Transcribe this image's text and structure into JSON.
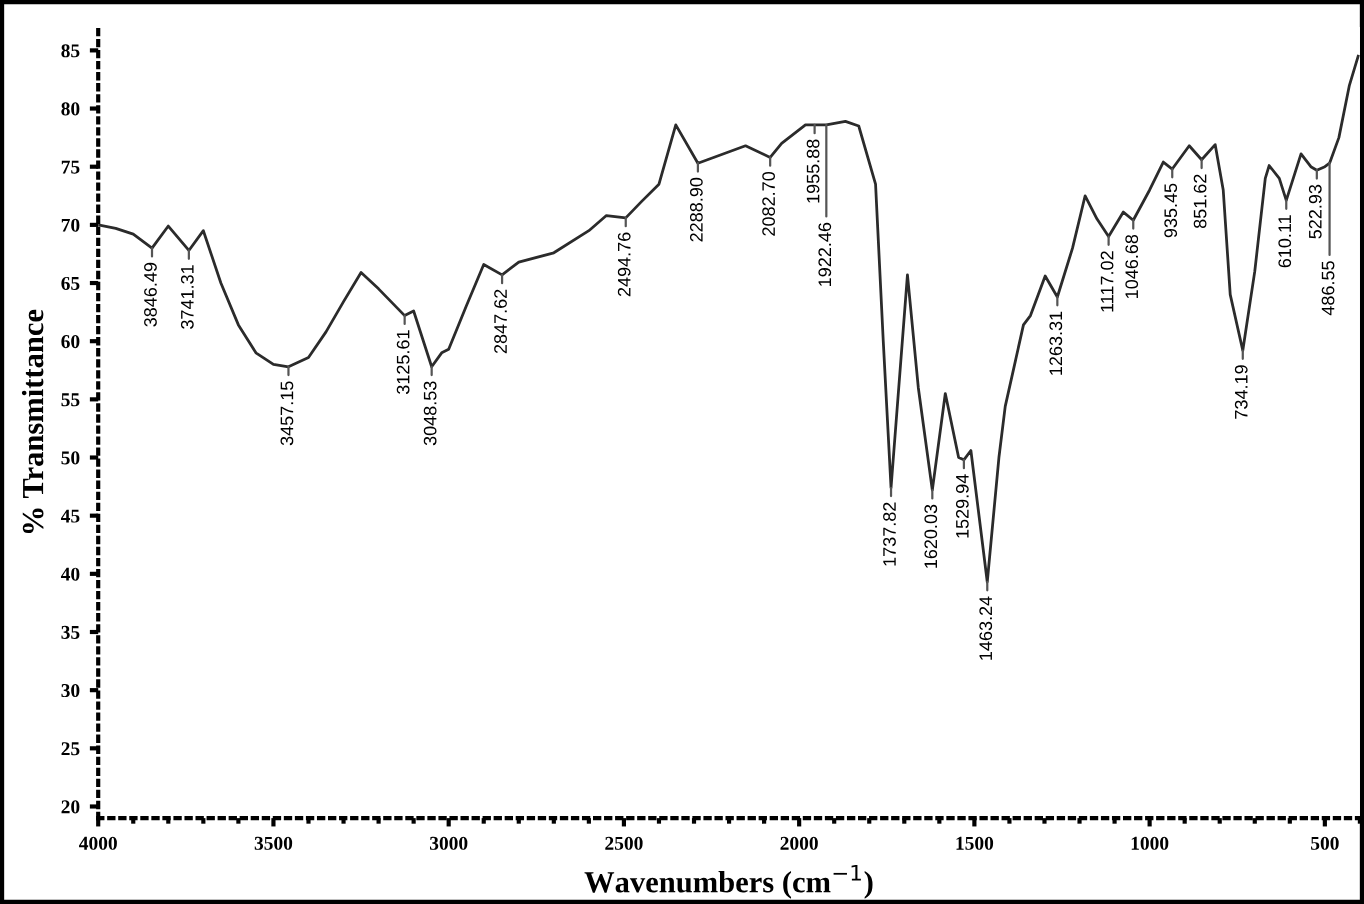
{
  "chart_data": {
    "type": "line",
    "xlabel": "Wavenumbers (cm$^{−1}$)",
    "ylabel": "% Transmittance",
    "xlim": [
      4000,
      400
    ],
    "ylim": [
      19,
      87
    ],
    "xticks": [
      4000,
      3500,
      3000,
      2500,
      2000,
      1500,
      1000,
      500
    ],
    "yticks": [
      20,
      25,
      30,
      35,
      40,
      45,
      50,
      55,
      60,
      65,
      70,
      75,
      80,
      85
    ],
    "line_style": "solid",
    "marker": "none",
    "series": [
      {
        "color": "#2b2b2b",
        "x": [
          4000,
          3950,
          3900,
          3846.49,
          3800,
          3741.31,
          3700,
          3650,
          3600,
          3550,
          3500,
          3457.15,
          3400,
          3350,
          3300,
          3250,
          3200,
          3125.61,
          3100,
          3048.53,
          3020,
          3000,
          2950,
          2900,
          2847.62,
          2800,
          2700,
          2600,
          2550,
          2494.76,
          2450,
          2400,
          2352,
          2288.9,
          2153,
          2082.7,
          2050,
          1982,
          1955.88,
          1922.46,
          1868,
          1830,
          1782,
          1760,
          1737.82,
          1691,
          1660,
          1620.03,
          1583,
          1545,
          1529.94,
          1510,
          1463.24,
          1430,
          1412,
          1360,
          1340,
          1298,
          1263.31,
          1220,
          1184,
          1150,
          1117.02,
          1075,
          1046.68,
          1000,
          961,
          935.45,
          887,
          851.62,
          813,
          790,
          770,
          734.19,
          700,
          670,
          659,
          630,
          610.11,
          568,
          540,
          522.93,
          500,
          486.55,
          460,
          430,
          405
        ],
        "values": [
          70.0,
          69.7,
          69.2,
          68.0,
          69.9,
          67.8,
          69.5,
          65.0,
          61.4,
          59.0,
          58.0,
          57.8,
          58.6,
          60.8,
          63.4,
          65.9,
          64.5,
          62.2,
          62.6,
          57.8,
          59.0,
          59.3,
          63.0,
          66.6,
          65.7,
          66.8,
          67.6,
          69.5,
          70.8,
          70.6,
          72.0,
          73.5,
          78.6,
          75.3,
          76.8,
          75.8,
          77.0,
          78.6,
          78.6,
          78.6,
          78.9,
          78.5,
          73.5,
          60.0,
          47.4,
          65.7,
          56.0,
          47.2,
          55.5,
          50.0,
          49.8,
          50.6,
          39.3,
          50.0,
          54.4,
          61.4,
          62.2,
          65.6,
          63.8,
          68.0,
          72.5,
          70.5,
          69.0,
          71.1,
          70.4,
          73.0,
          75.4,
          74.8,
          76.8,
          75.6,
          76.9,
          73.0,
          64.0,
          59.2,
          66.0,
          74.0,
          75.1,
          74.0,
          72.1,
          76.1,
          75.0,
          74.7,
          75.0,
          75.3,
          77.5,
          82.0,
          84.5
        ]
      }
    ],
    "annotations": [
      {
        "text": "3846.49",
        "x": 3846.49,
        "y": 68.0
      },
      {
        "text": "3741.31",
        "x": 3741.31,
        "y": 67.8
      },
      {
        "text": "3457.15",
        "x": 3457.15,
        "y": 57.8
      },
      {
        "text": "3125.61",
        "x": 3125.61,
        "y": 62.2
      },
      {
        "text": "3048.53",
        "x": 3048.53,
        "y": 57.8
      },
      {
        "text": "2847.62",
        "x": 2847.62,
        "y": 65.7
      },
      {
        "text": "2494.76",
        "x": 2494.76,
        "y": 70.6
      },
      {
        "text": "2288.90",
        "x": 2288.9,
        "y": 75.3
      },
      {
        "text": "2082.70",
        "x": 2082.7,
        "y": 75.8
      },
      {
        "text": "1955.88",
        "x": 1955.88,
        "y": 78.6
      },
      {
        "text": "1922.46",
        "x": 1922.46,
        "y": 78.6
      },
      {
        "text": "1737.82",
        "x": 1737.82,
        "y": 47.4
      },
      {
        "text": "1620.03",
        "x": 1620.03,
        "y": 47.2
      },
      {
        "text": "1529.94",
        "x": 1529.94,
        "y": 49.8
      },
      {
        "text": "1463.24",
        "x": 1463.24,
        "y": 39.3
      },
      {
        "text": "1263.31",
        "x": 1263.31,
        "y": 63.8
      },
      {
        "text": "1117.02",
        "x": 1117.02,
        "y": 69.0
      },
      {
        "text": "1046.68",
        "x": 1046.68,
        "y": 70.4
      },
      {
        "text": "935.45",
        "x": 935.45,
        "y": 74.8
      },
      {
        "text": "851.62",
        "x": 851.62,
        "y": 75.6
      },
      {
        "text": "734.19",
        "x": 734.19,
        "y": 59.2
      },
      {
        "text": "610.11",
        "x": 610.11,
        "y": 72.1
      },
      {
        "text": "522.93",
        "x": 522.93,
        "y": 74.7
      },
      {
        "text": "486.55",
        "x": 486.55,
        "y": 75.3
      }
    ]
  }
}
